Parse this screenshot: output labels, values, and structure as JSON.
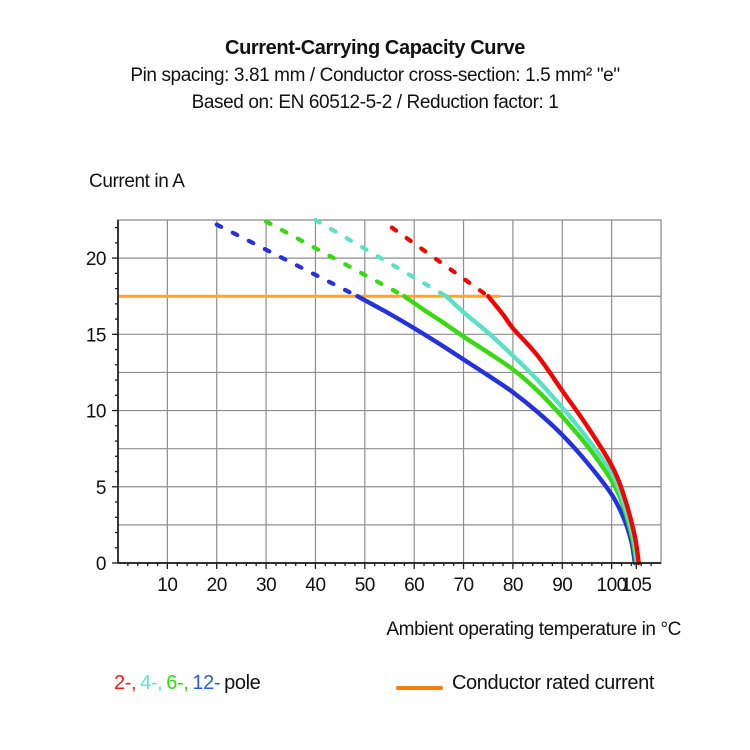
{
  "header": {
    "title": "Current-Carrying Capacity Curve",
    "subtitle": "Pin spacing: 3.81 mm / Conductor cross-section: 1.5 mm² \"e\"",
    "basis": "Based on: EN 60512-5-2 / Reduction factor: 1"
  },
  "legend": {
    "poles": [
      {
        "label": "2-,",
        "color": "#f2180f"
      },
      {
        "label": "4-,",
        "color": "#5fe5c5"
      },
      {
        "label": "6-,",
        "color": "#2fdb13"
      },
      {
        "label": "12-",
        "color": "#2a5ae0"
      }
    ],
    "pole_suffix": "pole"
  },
  "chart_data": {
    "type": "line",
    "title": "Current-Carrying Capacity Curve",
    "xlabel": "Ambient operating temperature in °C",
    "ylabel": "Current in A",
    "xlim": [
      0,
      110
    ],
    "ylim": [
      0,
      22.5
    ],
    "x_major_grid_step": 10,
    "y_major_grid_step": 2.5,
    "x_minor_tick_step": 2,
    "y_minor_tick_step": 1,
    "x_tick_labels": [
      10,
      20,
      30,
      40,
      50,
      60,
      70,
      80,
      90,
      100,
      105
    ],
    "y_tick_labels": [
      0,
      5,
      10,
      15,
      20
    ],
    "grid": true,
    "grid_color": "#8e8e8e",
    "axis_color": "#1a1a1a",
    "rated_current": {
      "label": "Conductor rated current",
      "value": 17.5,
      "x_start": 0,
      "x_end": 77.3,
      "color": "#ffa431",
      "legend_color": "#f87d0e"
    },
    "series": [
      {
        "name": "12-pole",
        "color": "#2531dd",
        "dashed": [
          [
            20,
            22.2
          ],
          [
            48.5,
            17.5
          ]
        ],
        "solid": [
          [
            48.5,
            17.5
          ],
          [
            55,
            16.35
          ],
          [
            60,
            15.4
          ],
          [
            65,
            14.4
          ],
          [
            70,
            13.35
          ],
          [
            75,
            12.3
          ],
          [
            80,
            11.2
          ],
          [
            85,
            9.9
          ],
          [
            90,
            8.4
          ],
          [
            95,
            6.6
          ],
          [
            100,
            4.5
          ],
          [
            102.5,
            2.9
          ],
          [
            104,
            1.4
          ],
          [
            104.7,
            0
          ]
        ]
      },
      {
        "name": "6-pole",
        "color": "#38d90e",
        "dashed": [
          [
            30,
            22.4
          ],
          [
            58,
            17.5
          ]
        ],
        "solid": [
          [
            58,
            17.5
          ],
          [
            62,
            16.6
          ],
          [
            66,
            15.75
          ],
          [
            70,
            14.85
          ],
          [
            75,
            13.8
          ],
          [
            80,
            12.7
          ],
          [
            85,
            11.3
          ],
          [
            90,
            9.6
          ],
          [
            95,
            7.7
          ],
          [
            100,
            5.4
          ],
          [
            102.5,
            3.6
          ],
          [
            104.2,
            1.6
          ],
          [
            105,
            0
          ]
        ]
      },
      {
        "name": "4-pole",
        "color": "#58e2c3",
        "dashed": [
          [
            40,
            22.5
          ],
          [
            66.5,
            17.5
          ]
        ],
        "solid": [
          [
            66.5,
            17.5
          ],
          [
            70,
            16.45
          ],
          [
            75,
            15.1
          ],
          [
            80,
            13.6
          ],
          [
            85,
            12.0
          ],
          [
            90,
            10.2
          ],
          [
            95,
            8.2
          ],
          [
            100,
            5.9
          ],
          [
            102.5,
            3.9
          ],
          [
            104.4,
            1.7
          ],
          [
            105.2,
            0
          ]
        ]
      },
      {
        "name": "2-pole",
        "color": "#f20500",
        "dashed": [
          [
            55.5,
            22.0
          ],
          [
            75,
            17.5
          ]
        ],
        "solid": [
          [
            75,
            17.5
          ],
          [
            78,
            16.3
          ],
          [
            80,
            15.4
          ],
          [
            85,
            13.6
          ],
          [
            90,
            11.3
          ],
          [
            95,
            9.0
          ],
          [
            100,
            6.4
          ],
          [
            102.5,
            4.4
          ],
          [
            104.6,
            1.9
          ],
          [
            105.5,
            0
          ]
        ]
      }
    ]
  }
}
